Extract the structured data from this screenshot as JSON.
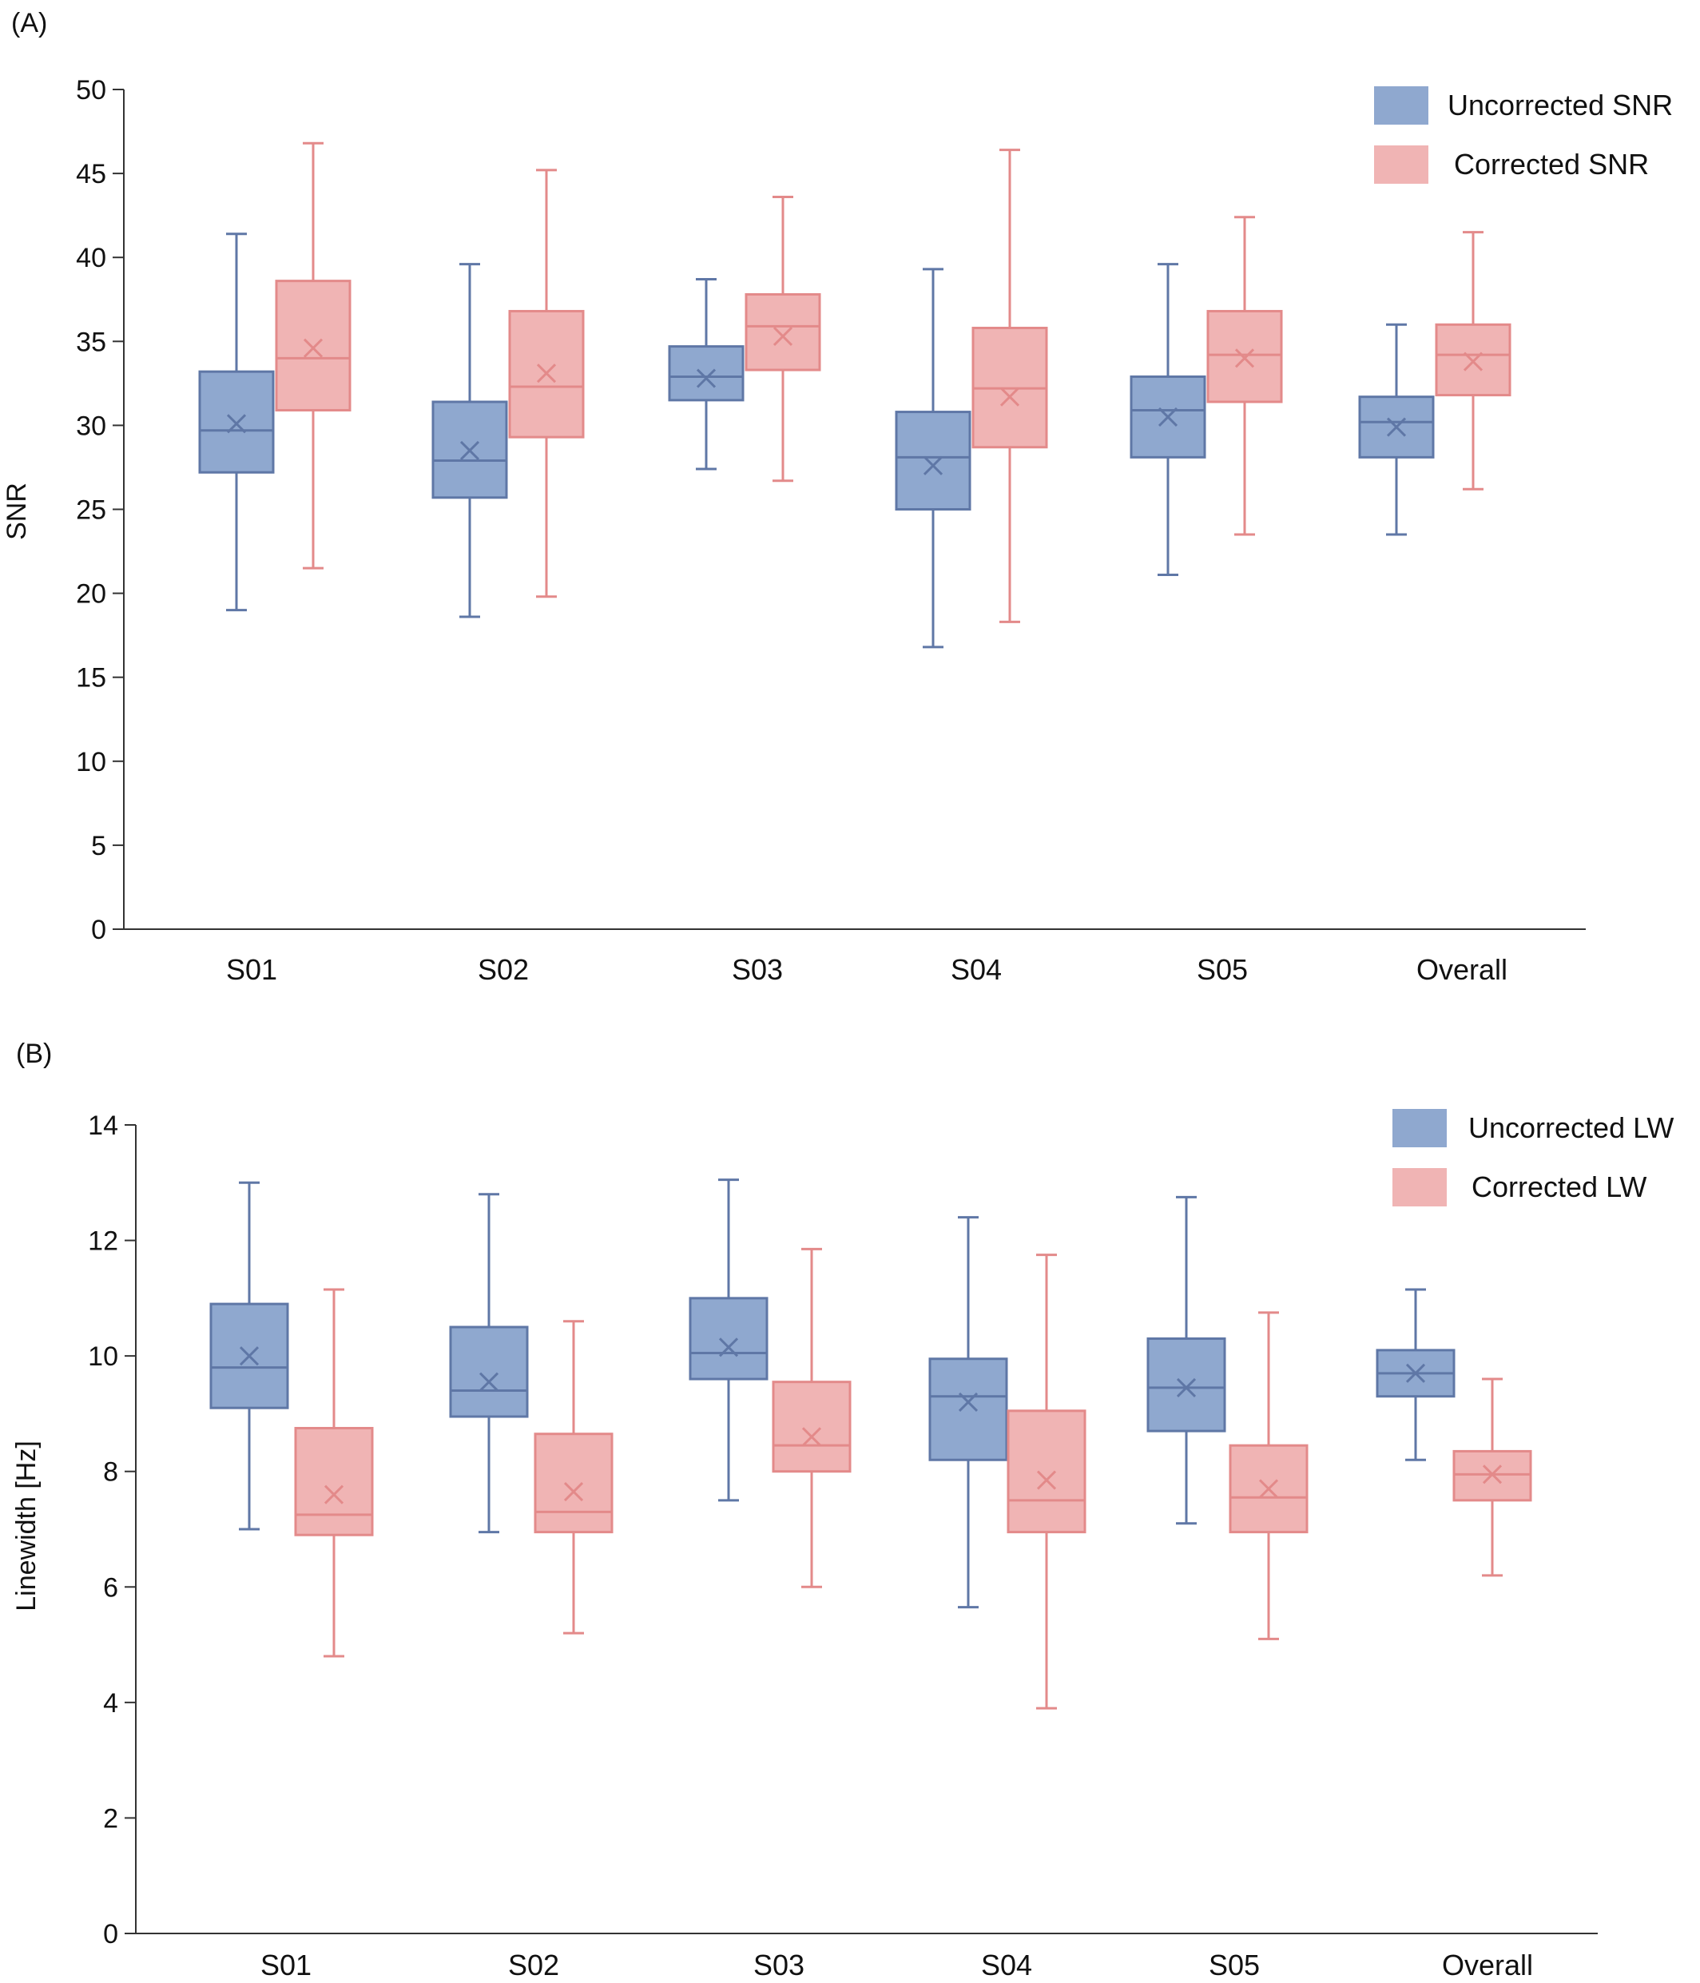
{
  "colors": {
    "uncorrected_fill": "#8fa8cf",
    "uncorrected_stroke": "#5f77a6",
    "corrected_fill": "#f0b4b4",
    "corrected_stroke": "#e38a8a",
    "axis": "#333333"
  },
  "chart_data": [
    {
      "type": "box",
      "panel_label": "(A)",
      "ylabel": "SNR",
      "xlabel": "",
      "ylim": [
        0,
        50
      ],
      "yticks": [
        0,
        5,
        10,
        15,
        20,
        25,
        30,
        35,
        40,
        45,
        50
      ],
      "categories": [
        "S01",
        "S02",
        "S03",
        "S04",
        "S05",
        "Overall"
      ],
      "legend_position": "top-right",
      "series": [
        {
          "name": "Uncorrected SNR",
          "boxes": [
            {
              "min": 19.0,
              "q1": 27.2,
              "median": 29.7,
              "q3": 33.2,
              "max": 41.4,
              "mean": 30.1
            },
            {
              "min": 18.6,
              "q1": 25.7,
              "median": 27.9,
              "q3": 31.4,
              "max": 39.6,
              "mean": 28.5
            },
            {
              "min": 27.4,
              "q1": 31.5,
              "median": 32.9,
              "q3": 34.7,
              "max": 38.7,
              "mean": 32.8
            },
            {
              "min": 16.8,
              "q1": 25.0,
              "median": 28.1,
              "q3": 30.8,
              "max": 39.3,
              "mean": 27.6
            },
            {
              "min": 21.1,
              "q1": 28.1,
              "median": 30.9,
              "q3": 32.9,
              "max": 39.6,
              "mean": 30.5
            },
            {
              "min": 23.5,
              "q1": 28.1,
              "median": 30.2,
              "q3": 31.7,
              "max": 36.0,
              "mean": 29.9
            }
          ]
        },
        {
          "name": "Corrected SNR",
          "boxes": [
            {
              "min": 21.5,
              "q1": 30.9,
              "median": 34.0,
              "q3": 38.6,
              "max": 46.8,
              "mean": 34.6
            },
            {
              "min": 19.8,
              "q1": 29.3,
              "median": 32.3,
              "q3": 36.8,
              "max": 45.2,
              "mean": 33.1
            },
            {
              "min": 26.7,
              "q1": 33.3,
              "median": 35.9,
              "q3": 37.8,
              "max": 43.6,
              "mean": 35.3
            },
            {
              "min": 18.3,
              "q1": 28.7,
              "median": 32.2,
              "q3": 35.8,
              "max": 46.4,
              "mean": 31.7
            },
            {
              "min": 23.5,
              "q1": 31.4,
              "median": 34.2,
              "q3": 36.8,
              "max": 42.4,
              "mean": 34.0
            },
            {
              "min": 26.2,
              "q1": 31.8,
              "median": 34.2,
              "q3": 36.0,
              "max": 41.5,
              "mean": 33.8
            }
          ]
        }
      ]
    },
    {
      "type": "box",
      "panel_label": "(B)",
      "ylabel": "Linewidth [Hz]",
      "xlabel": "",
      "ylim": [
        0,
        14
      ],
      "yticks": [
        0,
        2,
        4,
        6,
        8,
        10,
        12,
        14
      ],
      "categories": [
        "S01",
        "S02",
        "S03",
        "S04",
        "S05",
        "Overall"
      ],
      "legend_position": "top-right",
      "series": [
        {
          "name": "Uncorrected LW",
          "boxes": [
            {
              "min": 7.0,
              "q1": 9.1,
              "median": 9.8,
              "q3": 10.9,
              "max": 13.0,
              "mean": 10.0
            },
            {
              "min": 6.95,
              "q1": 8.95,
              "median": 9.4,
              "q3": 10.5,
              "max": 12.8,
              "mean": 9.55
            },
            {
              "min": 7.5,
              "q1": 9.6,
              "median": 10.05,
              "q3": 11.0,
              "max": 13.05,
              "mean": 10.15
            },
            {
              "min": 5.65,
              "q1": 8.2,
              "median": 9.3,
              "q3": 9.95,
              "max": 12.4,
              "mean": 9.2
            },
            {
              "min": 7.1,
              "q1": 8.7,
              "median": 9.45,
              "q3": 10.3,
              "max": 12.75,
              "mean": 9.45
            },
            {
              "min": 8.2,
              "q1": 9.3,
              "median": 9.7,
              "q3": 10.1,
              "max": 11.15,
              "mean": 9.7
            }
          ]
        },
        {
          "name": "Corrected LW",
          "boxes": [
            {
              "min": 4.8,
              "q1": 6.9,
              "median": 7.25,
              "q3": 8.75,
              "max": 11.15,
              "mean": 7.6
            },
            {
              "min": 5.2,
              "q1": 6.95,
              "median": 7.3,
              "q3": 8.65,
              "max": 10.6,
              "mean": 7.65
            },
            {
              "min": 6.0,
              "q1": 8.0,
              "median": 8.45,
              "q3": 9.55,
              "max": 11.85,
              "mean": 8.6
            },
            {
              "min": 3.9,
              "q1": 6.95,
              "median": 7.5,
              "q3": 9.05,
              "max": 11.75,
              "mean": 7.85
            },
            {
              "min": 5.1,
              "q1": 6.95,
              "median": 7.55,
              "q3": 8.45,
              "max": 10.75,
              "mean": 7.7
            },
            {
              "min": 6.2,
              "q1": 7.5,
              "median": 7.95,
              "q3": 8.35,
              "max": 9.6,
              "mean": 7.95
            }
          ]
        }
      ]
    }
  ]
}
